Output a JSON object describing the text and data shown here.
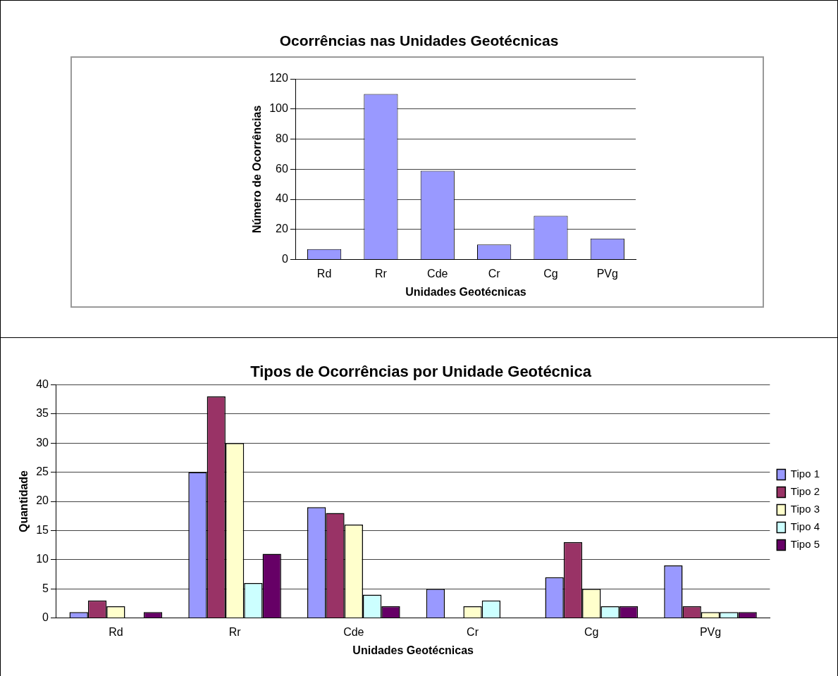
{
  "chart_data": [
    {
      "type": "bar",
      "title": "Ocorrências nas Unidades Geotécnicas",
      "xlabel": "Unidades Geotécnicas",
      "ylabel": "Número de Ocorrências",
      "categories": [
        "Rd",
        "Rr",
        "Cde",
        "Cr",
        "Cg",
        "PVg"
      ],
      "values": [
        7,
        110,
        59,
        10,
        29,
        14
      ],
      "color": "#9999ff",
      "ylim": [
        0,
        120
      ],
      "yticks": [
        0,
        20,
        40,
        60,
        80,
        100,
        120
      ],
      "grid": "y"
    },
    {
      "type": "bar",
      "title": "Tipos de Ocorrências por Unidade Geotécnica",
      "xlabel": "Unidades Geotécnicas",
      "ylabel": "Quantidade",
      "categories": [
        "Rd",
        "Rr",
        "Cde",
        "Cr",
        "Cg",
        "PVg"
      ],
      "series": [
        {
          "name": "Tipo 1",
          "color": "#9999ff",
          "values": [
            1,
            25,
            19,
            5,
            7,
            9
          ]
        },
        {
          "name": "Tipo 2",
          "color": "#993366",
          "values": [
            3,
            38,
            18,
            0,
            13,
            2
          ]
        },
        {
          "name": "Tipo 3",
          "color": "#ffffcc",
          "values": [
            2,
            30,
            16,
            2,
            5,
            1
          ]
        },
        {
          "name": "Tipo 4",
          "color": "#ccffff",
          "values": [
            0,
            6,
            4,
            3,
            2,
            1
          ]
        },
        {
          "name": "Tipo 5",
          "color": "#660066",
          "values": [
            1,
            11,
            2,
            0,
            2,
            1
          ]
        }
      ],
      "ylim": [
        0,
        40
      ],
      "yticks": [
        0,
        5,
        10,
        15,
        20,
        25,
        30,
        35,
        40
      ],
      "grid": "y",
      "legend": "right"
    }
  ]
}
